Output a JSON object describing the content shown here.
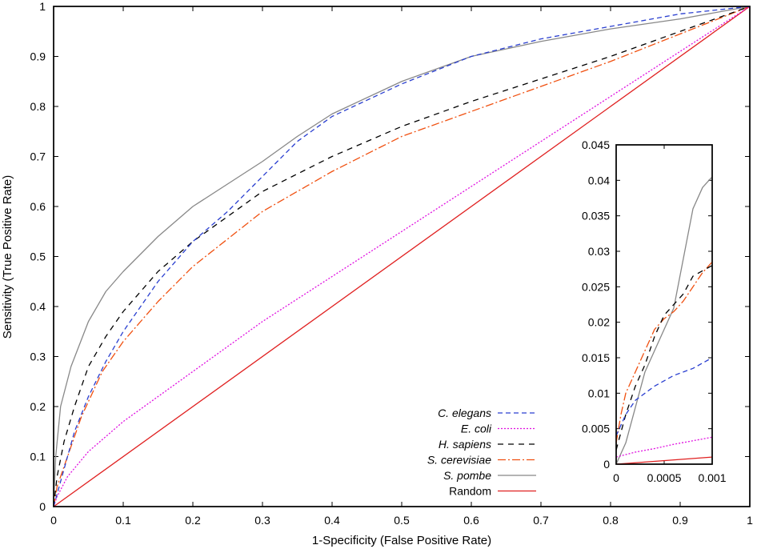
{
  "chart_data": [
    {
      "type": "line",
      "title": "",
      "xlabel": "1-Specificity (False Positive Rate)",
      "ylabel": "Sensitivity (True Positive Rate)",
      "xlim": [
        0,
        1
      ],
      "ylim": [
        0,
        1
      ],
      "xticks": [
        "0",
        "0.1",
        "0.2",
        "0.3",
        "0.4",
        "0.5",
        "0.6",
        "0.7",
        "0.8",
        "0.9",
        "1"
      ],
      "yticks": [
        "0",
        "0.1",
        "0.2",
        "0.3",
        "0.4",
        "0.5",
        "0.6",
        "0.7",
        "0.8",
        "0.9",
        "1"
      ],
      "grid": false,
      "legend_position": "bottom-right",
      "series": [
        {
          "name": "C. elegans",
          "italic": true,
          "color": "#2a3fd0",
          "dash": "6,4",
          "points": [
            [
              0,
              0
            ],
            [
              0.01,
              0.05
            ],
            [
              0.02,
              0.1
            ],
            [
              0.03,
              0.15
            ],
            [
              0.05,
              0.22
            ],
            [
              0.075,
              0.29
            ],
            [
              0.1,
              0.35
            ],
            [
              0.15,
              0.45
            ],
            [
              0.2,
              0.53
            ],
            [
              0.25,
              0.59
            ],
            [
              0.3,
              0.66
            ],
            [
              0.35,
              0.73
            ],
            [
              0.4,
              0.78
            ],
            [
              0.5,
              0.845
            ],
            [
              0.6,
              0.9
            ],
            [
              0.7,
              0.935
            ],
            [
              0.8,
              0.96
            ],
            [
              0.9,
              0.985
            ],
            [
              1,
              1
            ]
          ]
        },
        {
          "name": "E. coli",
          "italic": true,
          "color": "#e010e0",
          "dash": "2,2",
          "points": [
            [
              0,
              0
            ],
            [
              0.005,
              0.02
            ],
            [
              0.02,
              0.06
            ],
            [
              0.05,
              0.11
            ],
            [
              0.1,
              0.17
            ],
            [
              0.2,
              0.27
            ],
            [
              0.3,
              0.37
            ],
            [
              0.4,
              0.46
            ],
            [
              0.5,
              0.55
            ],
            [
              0.6,
              0.64
            ],
            [
              0.7,
              0.73
            ],
            [
              0.8,
              0.82
            ],
            [
              0.9,
              0.91
            ],
            [
              1,
              1
            ]
          ]
        },
        {
          "name": "H. sapiens",
          "italic": true,
          "color": "#000000",
          "dash": "7,6",
          "points": [
            [
              0,
              0
            ],
            [
              0.005,
              0.06
            ],
            [
              0.015,
              0.13
            ],
            [
              0.03,
              0.2
            ],
            [
              0.05,
              0.28
            ],
            [
              0.075,
              0.34
            ],
            [
              0.1,
              0.39
            ],
            [
              0.15,
              0.47
            ],
            [
              0.2,
              0.53
            ],
            [
              0.3,
              0.63
            ],
            [
              0.4,
              0.7
            ],
            [
              0.5,
              0.76
            ],
            [
              0.6,
              0.81
            ],
            [
              0.7,
              0.855
            ],
            [
              0.8,
              0.9
            ],
            [
              0.9,
              0.95
            ],
            [
              1,
              1
            ]
          ]
        },
        {
          "name": "S. cerevisiae",
          "italic": true,
          "color": "#f05010",
          "dash": "10,3,2,3",
          "points": [
            [
              0,
              0
            ],
            [
              0.005,
              0.04
            ],
            [
              0.02,
              0.1
            ],
            [
              0.04,
              0.18
            ],
            [
              0.07,
              0.27
            ],
            [
              0.1,
              0.33
            ],
            [
              0.15,
              0.41
            ],
            [
              0.2,
              0.48
            ],
            [
              0.3,
              0.59
            ],
            [
              0.4,
              0.67
            ],
            [
              0.5,
              0.74
            ],
            [
              0.6,
              0.79
            ],
            [
              0.7,
              0.84
            ],
            [
              0.8,
              0.89
            ],
            [
              0.9,
              0.945
            ],
            [
              1,
              1
            ]
          ]
        },
        {
          "name": "S. pombe",
          "italic": true,
          "color": "#888888",
          "dash": "",
          "points": [
            [
              0,
              0
            ],
            [
              0.003,
              0.1
            ],
            [
              0.01,
              0.2
            ],
            [
              0.025,
              0.28
            ],
            [
              0.05,
              0.37
            ],
            [
              0.075,
              0.43
            ],
            [
              0.1,
              0.47
            ],
            [
              0.15,
              0.54
            ],
            [
              0.2,
              0.6
            ],
            [
              0.25,
              0.645
            ],
            [
              0.3,
              0.69
            ],
            [
              0.35,
              0.74
            ],
            [
              0.4,
              0.785
            ],
            [
              0.5,
              0.85
            ],
            [
              0.6,
              0.9
            ],
            [
              0.7,
              0.93
            ],
            [
              0.8,
              0.955
            ],
            [
              0.9,
              0.975
            ],
            [
              1,
              1
            ]
          ]
        },
        {
          "name": "Random",
          "italic": false,
          "color": "#e02020",
          "dash": "",
          "points": [
            [
              0,
              0
            ],
            [
              1,
              1
            ]
          ]
        }
      ]
    },
    {
      "type": "line",
      "title": "",
      "xlabel": "",
      "ylabel": "",
      "xlim": [
        0,
        0.001
      ],
      "ylim": [
        0,
        0.045
      ],
      "xticks": [
        "0",
        "0.0005",
        "0.001"
      ],
      "yticks": [
        "0",
        "0.005",
        "0.01",
        "0.015",
        "0.02",
        "0.025",
        "0.03",
        "0.035",
        "0.04",
        "0.045"
      ],
      "grid": false,
      "series": [
        {
          "name": "C. elegans",
          "color": "#2a3fd0",
          "dash": "6,4",
          "points": [
            [
              0,
              0.004
            ],
            [
              0.0001,
              0.007
            ],
            [
              0.0002,
              0.009
            ],
            [
              0.0004,
              0.011
            ],
            [
              0.0006,
              0.0125
            ],
            [
              0.0008,
              0.0135
            ],
            [
              0.001,
              0.015
            ]
          ]
        },
        {
          "name": "E. coli",
          "color": "#e010e0",
          "dash": "2,2",
          "points": [
            [
              0,
              0.001
            ],
            [
              0.0002,
              0.0017
            ],
            [
              0.0004,
              0.0022
            ],
            [
              0.0006,
              0.0028
            ],
            [
              0.0008,
              0.0033
            ],
            [
              0.001,
              0.0038
            ]
          ]
        },
        {
          "name": "H. sapiens",
          "color": "#000000",
          "dash": "7,6",
          "points": [
            [
              0,
              0.002
            ],
            [
              0.0001,
              0.007
            ],
            [
              0.0002,
              0.011
            ],
            [
              0.0003,
              0.014
            ],
            [
              0.0004,
              0.018
            ],
            [
              0.0005,
              0.021
            ],
            [
              0.0006,
              0.0225
            ],
            [
              0.0007,
              0.024
            ],
            [
              0.0008,
              0.0265
            ],
            [
              0.001,
              0.028
            ]
          ]
        },
        {
          "name": "S. cerevisiae",
          "color": "#f05010",
          "dash": "10,3,2,3",
          "points": [
            [
              0,
              0.003
            ],
            [
              5e-05,
              0.007
            ],
            [
              0.0001,
              0.01
            ],
            [
              0.0002,
              0.013
            ],
            [
              0.0003,
              0.016
            ],
            [
              0.0004,
              0.019
            ],
            [
              0.0005,
              0.0205
            ],
            [
              0.0006,
              0.0215
            ],
            [
              0.0007,
              0.023
            ],
            [
              0.0008,
              0.025
            ],
            [
              0.0009,
              0.027
            ],
            [
              0.001,
              0.0285
            ]
          ]
        },
        {
          "name": "S. pombe",
          "color": "#888888",
          "dash": "",
          "points": [
            [
              0,
              0.0
            ],
            [
              0.0001,
              0.003
            ],
            [
              0.0002,
              0.008
            ],
            [
              0.0003,
              0.013
            ],
            [
              0.0004,
              0.016
            ],
            [
              0.0005,
              0.019
            ],
            [
              0.0006,
              0.022
            ],
            [
              0.0007,
              0.029
            ],
            [
              0.0008,
              0.036
            ],
            [
              0.0009,
              0.039
            ],
            [
              0.001,
              0.0405
            ]
          ]
        },
        {
          "name": "Random",
          "color": "#e02020",
          "dash": "",
          "points": [
            [
              0,
              0.0
            ],
            [
              0.001,
              0.001
            ]
          ]
        }
      ]
    }
  ]
}
